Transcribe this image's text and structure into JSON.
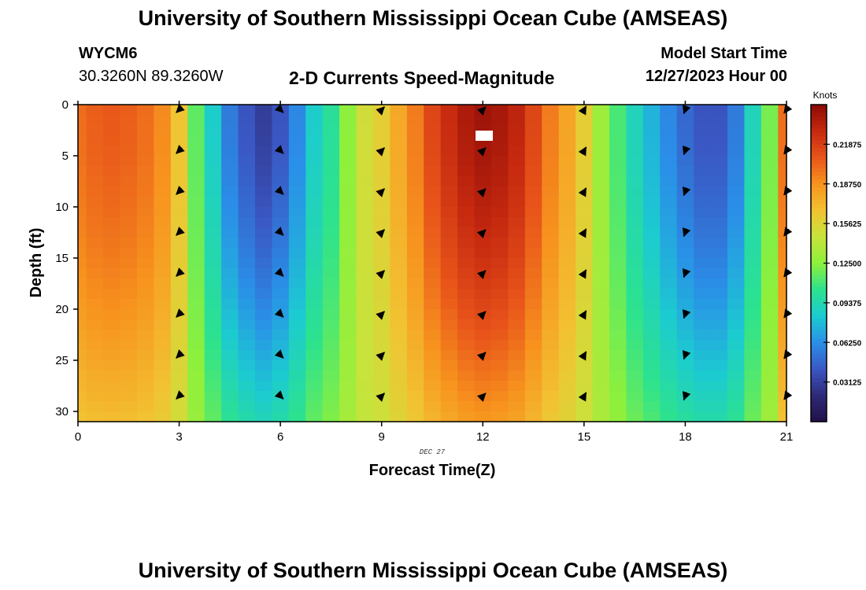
{
  "header": {
    "title": "University of Southern Mississippi Ocean Cube (AMSEAS)",
    "station_id": "WYCM6",
    "station_coords": "30.3260N  89.3260W",
    "plot_title": "2-D Currents Speed-Magnitude",
    "model_start_label": "Model Start Time",
    "model_start_value": "12/27/2023 Hour 00"
  },
  "footer": {
    "title": "University of Southern Mississippi Ocean Cube (AMSEAS)"
  },
  "chart_data": {
    "type": "heatmap",
    "title": "2-D Currents Speed-Magnitude",
    "xlabel": "Forecast Time(Z)",
    "ylabel": "Depth (ft)",
    "date_label": "DEC 27",
    "xlim": [
      0,
      21
    ],
    "ylim": [
      31,
      0
    ],
    "x_ticks": [
      "0",
      "3",
      "6",
      "9",
      "12",
      "15",
      "18",
      "21"
    ],
    "y_ticks": [
      "0",
      "5",
      "10",
      "15",
      "20",
      "25",
      "30"
    ],
    "colorbar": {
      "label": "Knots",
      "range": [
        0.0,
        0.25
      ],
      "ticks": [
        "0.21875",
        "0.18750",
        "0.15625",
        "0.12500",
        "0.09375",
        "0.06250",
        "0.03125"
      ]
    },
    "palette": [
      "#23104a",
      "#2e2a78",
      "#3a58c4",
      "#2a8fe8",
      "#1ccbd0",
      "#2de38d",
      "#8ef03c",
      "#c8e33c",
      "#f2c232",
      "#f7931e",
      "#e8541a",
      "#c6290f",
      "#8a0a06"
    ],
    "time_hours": [
      0,
      0.5,
      1,
      1.5,
      2,
      2.5,
      3,
      3.5,
      4,
      4.5,
      5,
      5.5,
      6,
      6.5,
      7,
      7.5,
      8,
      8.5,
      9,
      9.5,
      10,
      10.5,
      11,
      11.5,
      12,
      12.5,
      13,
      13.5,
      14,
      14.5,
      15,
      15.5,
      16,
      16.5,
      17,
      17.5,
      18,
      18.5,
      19,
      19.5,
      20,
      20.5,
      21
    ],
    "surface_speed_knots": [
      0.2,
      0.205,
      0.207,
      0.205,
      0.2,
      0.19,
      0.165,
      0.115,
      0.085,
      0.055,
      0.04,
      0.03,
      0.04,
      0.06,
      0.085,
      0.1,
      0.125,
      0.15,
      0.16,
      0.178,
      0.195,
      0.215,
      0.228,
      0.238,
      0.243,
      0.24,
      0.232,
      0.215,
      0.195,
      0.18,
      0.16,
      0.13,
      0.11,
      0.09,
      0.075,
      0.06,
      0.048,
      0.04,
      0.04,
      0.055,
      0.09,
      0.12,
      0.2
    ],
    "arrow_depths_ft": [
      0.5,
      4.5,
      8.5,
      12.5,
      16.5,
      20.5,
      24.5,
      28.5
    ],
    "arrows": [
      {
        "time": 3,
        "direction_deg": 225
      },
      {
        "time": 6,
        "direction_deg": 135
      },
      {
        "time": 9,
        "direction_deg": 45
      },
      {
        "time": 12,
        "direction_deg": 45
      },
      {
        "time": 15,
        "direction_deg": 30
      },
      {
        "time": 18,
        "direction_deg": 200
      },
      {
        "time": 21,
        "direction_deg": 215
      }
    ]
  }
}
